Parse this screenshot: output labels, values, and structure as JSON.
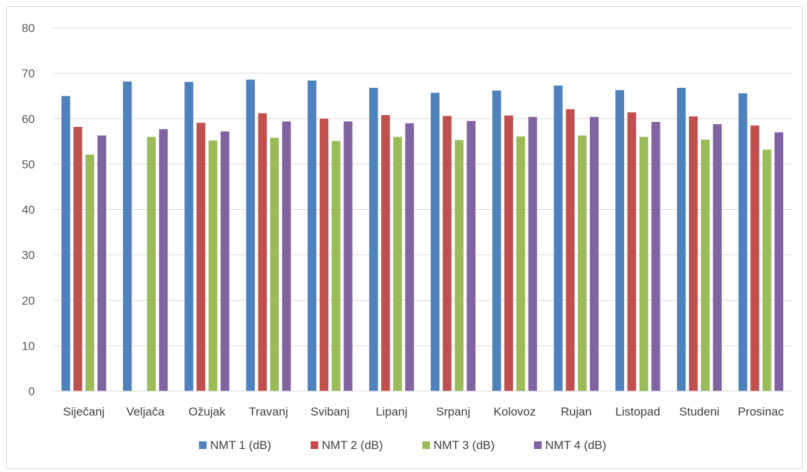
{
  "chart_data": {
    "type": "bar",
    "categories": [
      "Siječanj",
      "Veljača",
      "Ožujak",
      "Travanj",
      "Svibanj",
      "Lipanj",
      "Srpanj",
      "Kolovoz",
      "Rujan",
      "Listopad",
      "Studeni",
      "Prosinac"
    ],
    "series": [
      {
        "name": "NMT 1 (dB)",
        "color": "#4f81bd",
        "values": [
          65.0,
          68.2,
          68.1,
          68.6,
          68.4,
          66.8,
          65.7,
          66.2,
          67.3,
          66.3,
          66.8,
          65.6
        ]
      },
      {
        "name": "NMT 2 (dB)",
        "color": "#c0504d",
        "values": [
          58.2,
          null,
          59.1,
          61.2,
          60.0,
          60.8,
          60.6,
          60.7,
          62.1,
          61.4,
          60.5,
          58.5
        ]
      },
      {
        "name": "NMT 3 (dB)",
        "color": "#9bbb59",
        "values": [
          52.1,
          56.0,
          55.2,
          55.8,
          55.1,
          56.0,
          55.3,
          56.1,
          56.3,
          56.0,
          55.4,
          53.2
        ]
      },
      {
        "name": "NMT 4 (dB)",
        "color": "#8064a2",
        "values": [
          56.3,
          57.7,
          57.2,
          59.4,
          59.4,
          59.0,
          59.5,
          60.4,
          60.4,
          59.3,
          58.8,
          57.0
        ]
      }
    ],
    "y_ticks": [
      "0",
      "10",
      "20",
      "30",
      "40",
      "50",
      "60",
      "70",
      "80"
    ],
    "ylim": [
      0,
      80
    ],
    "grid": true,
    "gridline_color": "#d9d9d9",
    "legend_position": "bottom"
  }
}
